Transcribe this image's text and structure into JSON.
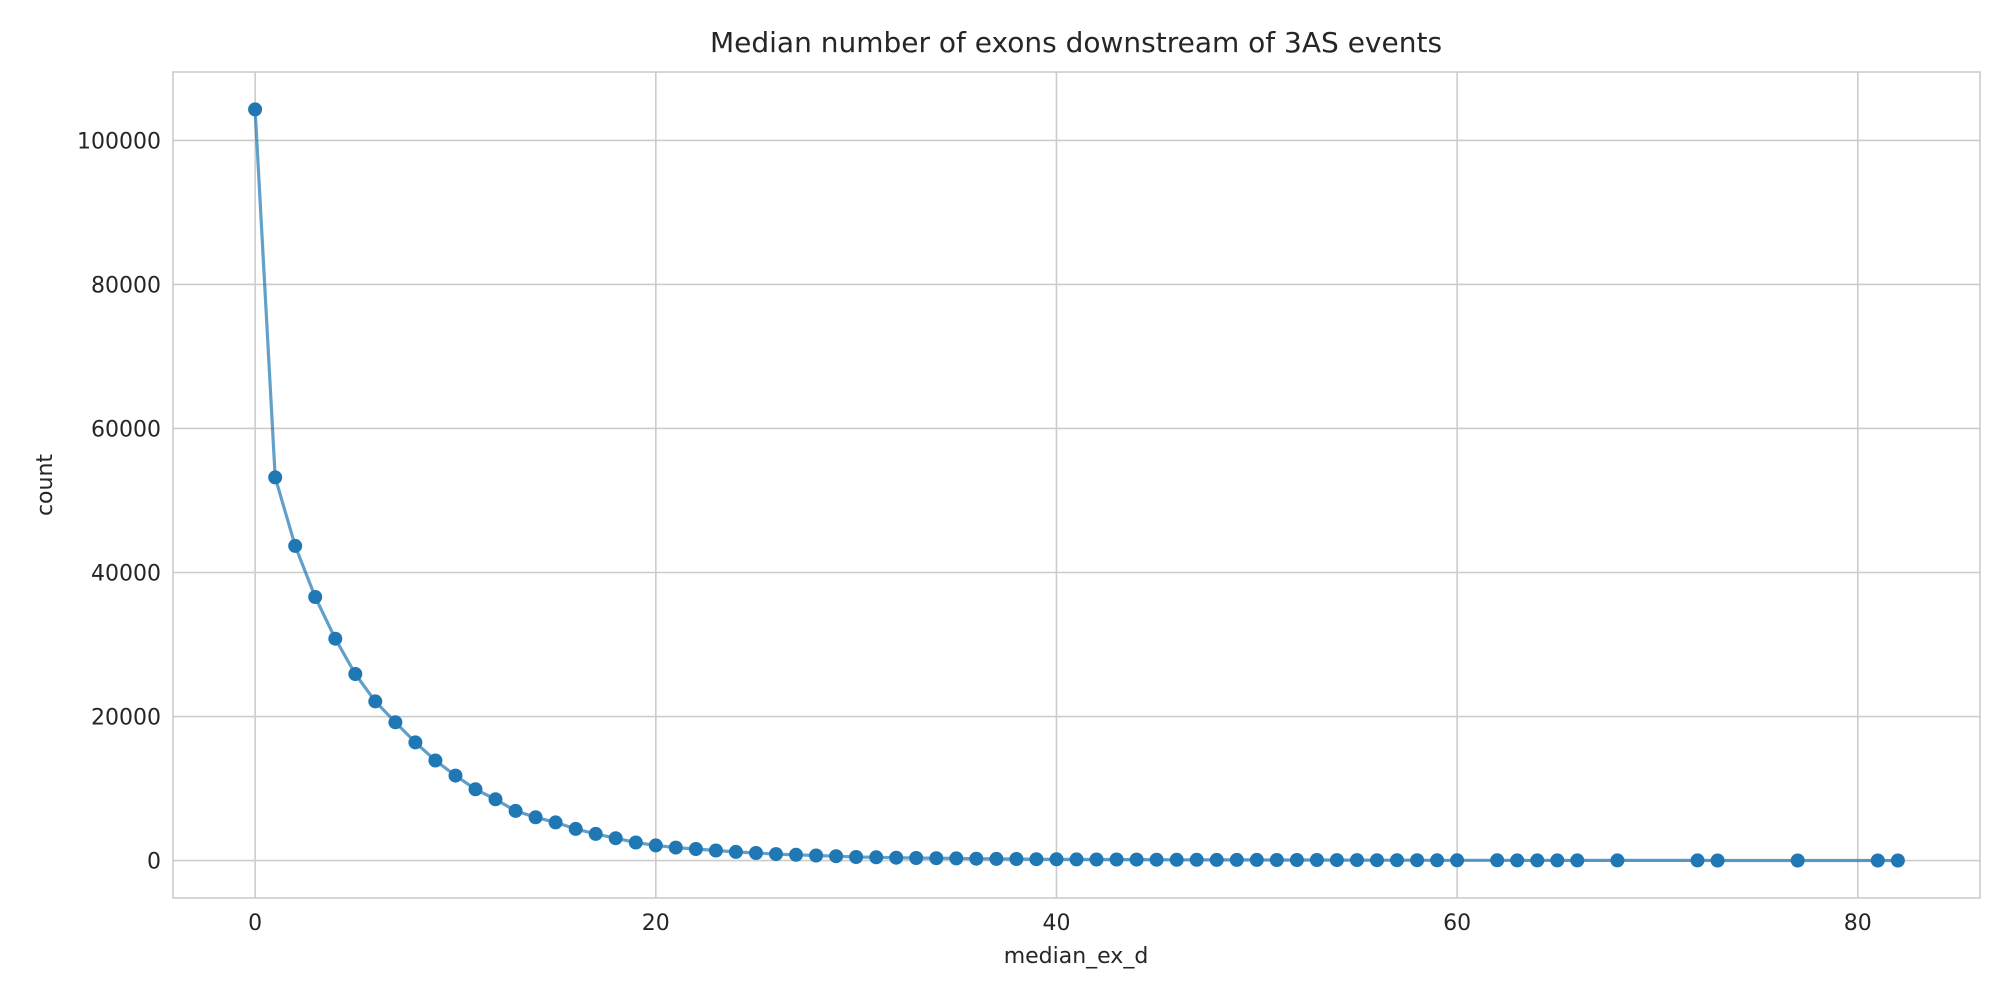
{
  "chart_data": {
    "type": "line",
    "title": "Median number of exons downstream of 3AS events",
    "xlabel": "median_ex_d",
    "ylabel": "count",
    "xlim": [
      -4.1,
      86.1
    ],
    "ylim": [
      -5200,
      109500
    ],
    "xticks": [
      0,
      20,
      40,
      60,
      80
    ],
    "yticks": [
      0,
      20000,
      40000,
      60000,
      80000,
      100000
    ],
    "grid": true,
    "legend": "none",
    "color": "#1f77b4",
    "markers": true,
    "x": [
      0,
      1,
      2,
      3,
      4,
      5,
      6,
      7,
      8,
      9,
      10,
      11,
      12,
      13,
      14,
      15,
      16,
      17,
      18,
      19,
      20,
      21,
      22,
      23,
      24,
      25,
      26,
      27,
      28,
      29,
      30,
      31,
      32,
      33,
      34,
      35,
      36,
      37,
      38,
      39,
      40,
      41,
      42,
      43,
      44,
      45,
      46,
      47,
      48,
      49,
      50,
      51,
      52,
      53,
      54,
      55,
      56,
      57,
      58,
      59,
      60,
      62,
      63,
      64,
      65,
      66,
      68,
      72,
      73,
      77,
      81,
      82
    ],
    "y": [
      104300,
      53200,
      43700,
      36600,
      30800,
      25900,
      22100,
      19200,
      16400,
      13900,
      11800,
      9900,
      8500,
      6900,
      6000,
      5300,
      4400,
      3700,
      3100,
      2500,
      2100,
      1800,
      1600,
      1400,
      1200,
      1050,
      900,
      800,
      700,
      600,
      500,
      450,
      400,
      350,
      320,
      300,
      260,
      230,
      210,
      190,
      170,
      160,
      150,
      140,
      130,
      120,
      110,
      100,
      95,
      90,
      85,
      80,
      75,
      70,
      65,
      60,
      55,
      50,
      45,
      40,
      35,
      30,
      28,
      26,
      24,
      22,
      20,
      15,
      12,
      10,
      8,
      6
    ]
  }
}
